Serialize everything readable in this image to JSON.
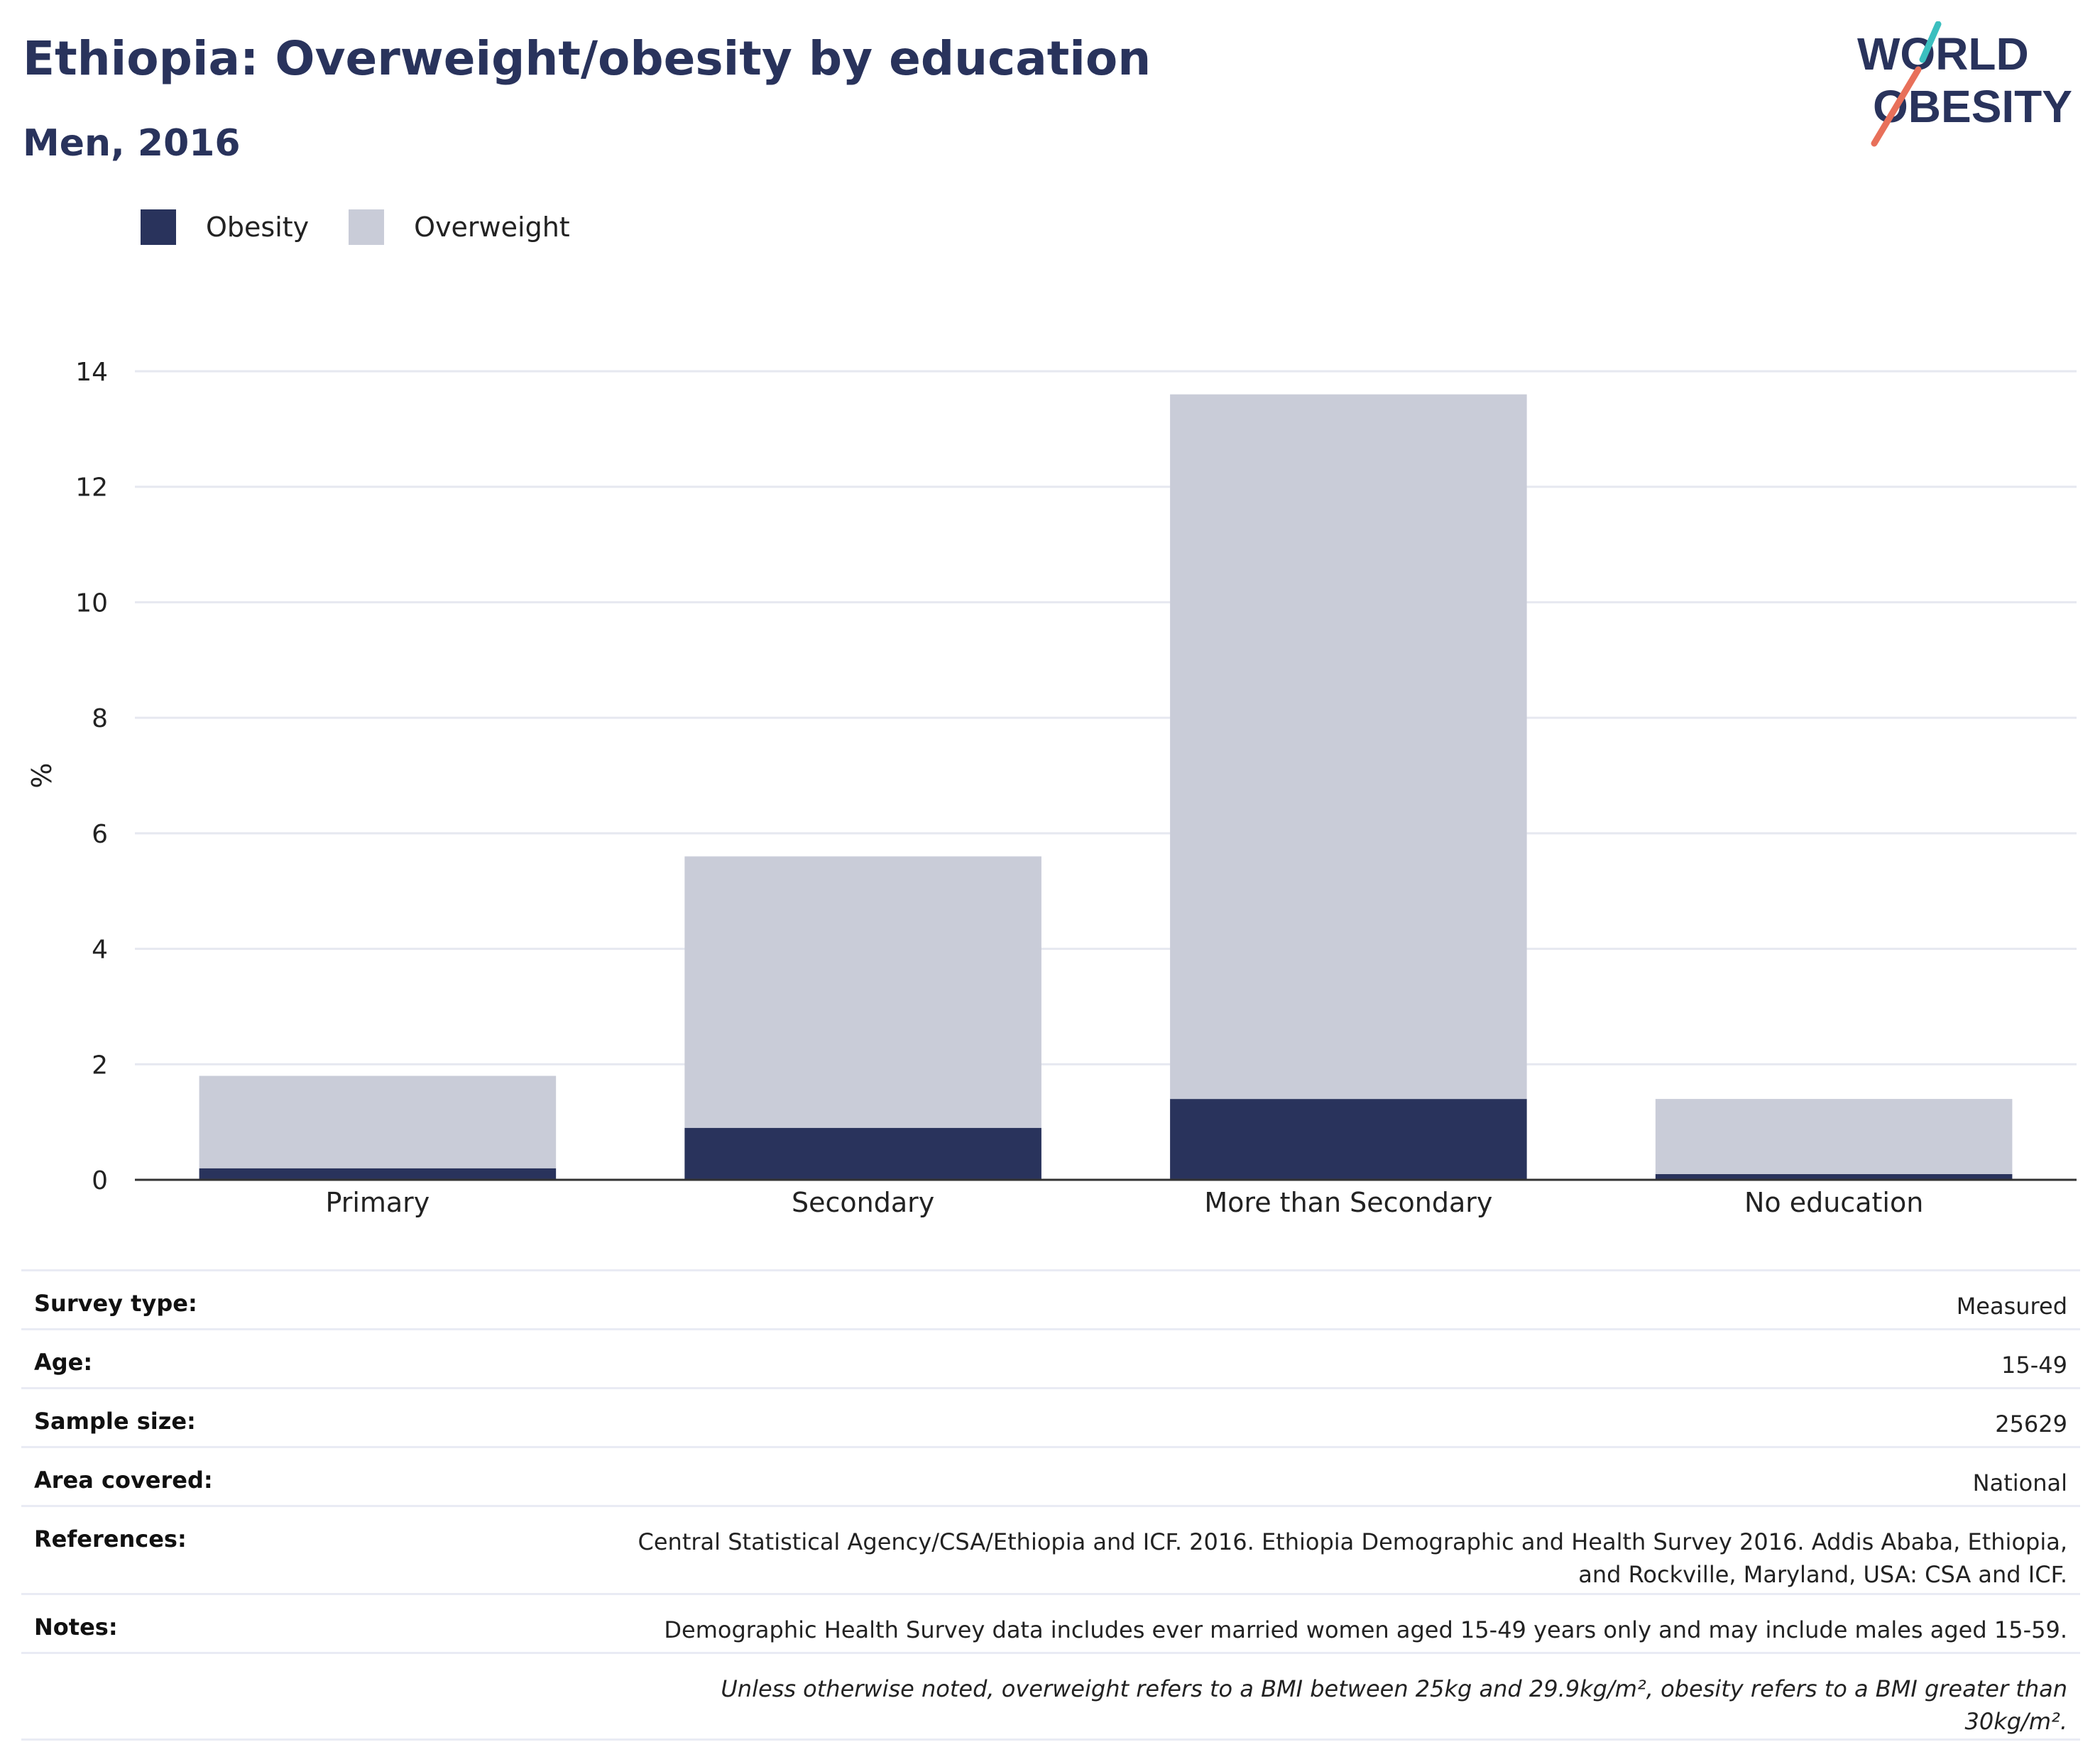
{
  "header": {
    "title": "Ethiopia: Overweight/obesity by education",
    "subtitle": "Men, 2016"
  },
  "logo": {
    "line1": "WORLD",
    "line2": "OBESITY",
    "colors": {
      "text": "#29335c",
      "slash_teal": "#3bbfbf",
      "slash_coral": "#e8705a"
    }
  },
  "colors": {
    "obesity": "#29335c",
    "overweight": "#c9ccd8",
    "grid": "#e6e8f0",
    "axis": "#333333"
  },
  "chart_data": {
    "type": "bar",
    "stacked": true,
    "categories": [
      "Primary",
      "Secondary",
      "More than Secondary",
      "No education"
    ],
    "series": [
      {
        "name": "Obesity",
        "values": [
          0.2,
          0.9,
          1.4,
          0.1
        ]
      },
      {
        "name": "Overweight",
        "values": [
          1.6,
          4.7,
          12.2,
          1.3
        ]
      }
    ],
    "ylabel": "%",
    "xlabel": "",
    "ylim": [
      0,
      14
    ],
    "yticks": [
      0,
      2,
      4,
      6,
      8,
      10,
      12,
      14
    ],
    "grid": true,
    "legend": "top-left"
  },
  "meta": {
    "rows": [
      {
        "label": "Survey type:",
        "value": "Measured"
      },
      {
        "label": "Age:",
        "value": "15-49"
      },
      {
        "label": "Sample size:",
        "value": "25629"
      },
      {
        "label": "Area covered:",
        "value": "National"
      },
      {
        "label": "References:",
        "value": "Central Statistical Agency/CSA/Ethiopia and ICF. 2016. Ethiopia Demographic and Health Survey 2016. Addis Ababa, Ethiopia, and Rockville, Maryland, USA: CSA and ICF."
      },
      {
        "label": "Notes:",
        "value": "Demographic Health Survey data includes ever married women aged 15-49 years only and may include males aged 15-59."
      }
    ],
    "footnote": "Unless otherwise noted, overweight refers to a BMI between 25kg and 29.9kg/m², obesity refers to a BMI greater than 30kg/m²."
  }
}
